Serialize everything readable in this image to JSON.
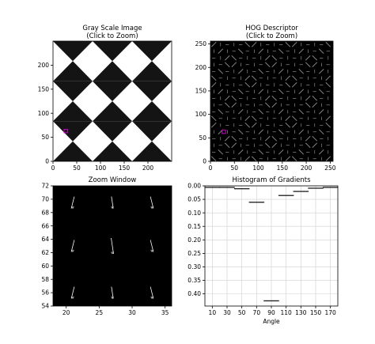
{
  "chart_data": [
    {
      "type": "image",
      "title": "Gray Scale Image\n(Click to Zoom)",
      "xticks": [
        0,
        50,
        100,
        150,
        200
      ],
      "yticks": [
        0,
        50,
        100,
        150,
        200
      ],
      "xlim": [
        0,
        250
      ],
      "ylim": [
        250,
        0
      ],
      "selection_marker": [
        27,
        63
      ],
      "colors": {
        "dark": "#141414",
        "light": "#ffffff",
        "marker": "#cc00cc"
      }
    },
    {
      "type": "image",
      "title": "HOG Descriptor\n(Click to Zoom)",
      "xticks": [
        0,
        50,
        100,
        150,
        200,
        250
      ],
      "yticks": [
        0,
        50,
        100,
        150,
        200,
        250
      ],
      "xlim": [
        0,
        256
      ],
      "ylim": [
        256,
        0
      ],
      "selection_marker": [
        28,
        63
      ],
      "colors": {
        "background": "#000000",
        "lines": "#ffffff",
        "marker": "#cc00cc"
      }
    },
    {
      "type": "image",
      "title": "Zoom Window",
      "xticks": [
        20,
        25,
        30,
        35
      ],
      "yticks": [
        54,
        56,
        58,
        60,
        62,
        64,
        66,
        68,
        70,
        72
      ],
      "xlim": [
        18,
        36
      ],
      "ylim": [
        72,
        54
      ],
      "selection_box": {
        "x": [
          24,
          30
        ],
        "y": [
          60,
          66
        ]
      },
      "colors": {
        "background": "#000000",
        "lines": "#ffffff",
        "box": "#cc00cc"
      }
    },
    {
      "type": "bar",
      "title": "Histogram of Gradients",
      "xlabel": "Angle",
      "ylabel": "",
      "categories": [
        10,
        30,
        50,
        70,
        90,
        110,
        130,
        150,
        170
      ],
      "values": [
        0.005,
        0.005,
        0.01,
        0.06,
        0.425,
        0.035,
        0.02,
        0.008,
        0.005
      ],
      "xticks": [
        10,
        30,
        50,
        70,
        90,
        110,
        130,
        150,
        170
      ],
      "yticks": [
        0.0,
        0.05,
        0.1,
        0.15,
        0.2,
        0.25,
        0.3,
        0.35,
        0.4
      ],
      "ytick_labels": [
        "0.00",
        "0.05",
        "0.10",
        "0.15",
        "0.20",
        "0.25",
        "0.30",
        "0.35",
        "0.40"
      ],
      "xlim": [
        0,
        180
      ],
      "ylim": [
        0,
        0.445
      ],
      "grid": true,
      "colors": {
        "bar_fill": "#8fb8d8",
        "bar_edge": "#1c1c1c",
        "grid": "#cfcfcf"
      }
    }
  ]
}
